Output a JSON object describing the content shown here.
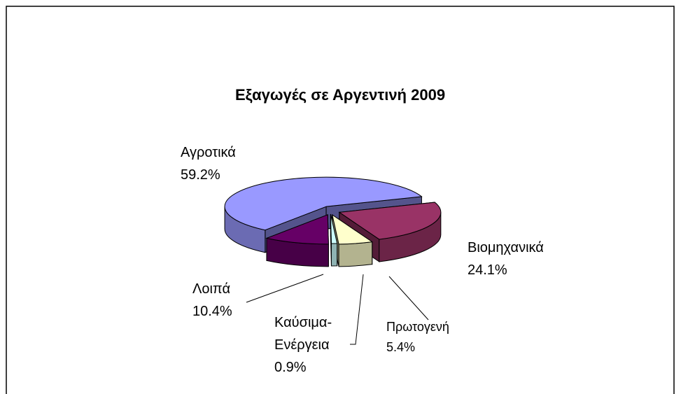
{
  "chart_data": {
    "type": "pie3d",
    "title": "Εξαγωγές σε Αργεντινή 2009",
    "categories": [
      "Αγροτικά",
      "Βιομηχανικά",
      "Πρωτογενή",
      "Καύσιμα-Ενέργεια",
      "Λοιπά"
    ],
    "values": [
      59.2,
      24.1,
      5.4,
      0.9,
      10.4
    ],
    "value_labels": [
      "59.2%",
      "24.1%",
      "5.4%",
      "0.9%",
      "10.4%"
    ],
    "colors": [
      "#9999ff",
      "#993366",
      "#ffffcc",
      "#ccffff",
      "#660066"
    ]
  }
}
